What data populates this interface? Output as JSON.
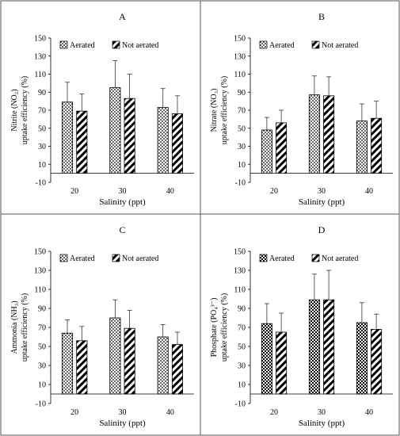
{
  "chart_data": [
    {
      "type": "bar",
      "title": "A",
      "ylabel_line1": "Nitrite (NO₂)",
      "ylabel_line2": "uptake efficiency (%)",
      "xlabel": "Salinity (ppt)",
      "categories": [
        "20",
        "30",
        "40"
      ],
      "ylim": [
        -10,
        150
      ],
      "yticks": [
        "-10",
        "10",
        "30",
        "50",
        "70",
        "90",
        "110",
        "130",
        "150"
      ],
      "legend": "top-center",
      "series": [
        {
          "name": "Aerated",
          "pattern": "dots",
          "values": [
            79,
            95,
            73
          ],
          "errors": [
            22,
            30,
            21
          ]
        },
        {
          "name": "Not aerated",
          "pattern": "stripes",
          "values": [
            69,
            83,
            66
          ],
          "errors": [
            19,
            27,
            20
          ]
        }
      ]
    },
    {
      "type": "bar",
      "title": "B",
      "ylabel_line1": "Nitrate (NO₃)",
      "ylabel_line2": "uptake efficiency (%)",
      "xlabel": "Salinity (ppt)",
      "categories": [
        "20",
        "30",
        "40"
      ],
      "ylim": [
        -10,
        150
      ],
      "yticks": [
        "-10",
        "10",
        "30",
        "50",
        "70",
        "90",
        "110",
        "130",
        "150"
      ],
      "legend": "top-center",
      "series": [
        {
          "name": "Aerated",
          "pattern": "dots",
          "values": [
            48,
            87,
            58
          ],
          "errors": [
            14,
            21,
            19
          ]
        },
        {
          "name": "Not aerated",
          "pattern": "stripes",
          "values": [
            56,
            86,
            61
          ],
          "errors": [
            14,
            21,
            19
          ]
        }
      ]
    },
    {
      "type": "bar",
      "title": "C",
      "ylabel_line1": "Ammonia (NH₃)",
      "ylabel_line2": "uptake efficiency (%)",
      "xlabel": "Salinity (ppt)",
      "categories": [
        "20",
        "30",
        "40"
      ],
      "ylim": [
        -10,
        150
      ],
      "yticks": [
        "-10",
        "10",
        "30",
        "50",
        "70",
        "90",
        "110",
        "130",
        "150"
      ],
      "legend": "top-center",
      "series": [
        {
          "name": "Aerated",
          "pattern": "dots",
          "values": [
            64,
            80,
            60
          ],
          "errors": [
            14,
            19,
            13
          ]
        },
        {
          "name": "Not aerated",
          "pattern": "stripes",
          "values": [
            56,
            69,
            52
          ],
          "errors": [
            15,
            19,
            13
          ]
        }
      ]
    },
    {
      "type": "bar",
      "title": "D",
      "ylabel_line1": "Phosphate (PO₄³⁻)",
      "ylabel_line2": "uptake efficiency (%)",
      "xlabel": "Salinity (ppt)",
      "categories": [
        "20",
        "30",
        "40"
      ],
      "ylim": [
        -10,
        150
      ],
      "yticks": [
        "-10",
        "10",
        "30",
        "50",
        "70",
        "90",
        "110",
        "130",
        "150"
      ],
      "legend": "top-center",
      "series": [
        {
          "name": "Aerated",
          "pattern": "checker",
          "values": [
            74,
            99,
            75
          ],
          "errors": [
            21,
            27,
            21
          ]
        },
        {
          "name": "Not aerated",
          "pattern": "stripes",
          "values": [
            65,
            99,
            68
          ],
          "errors": [
            20,
            31,
            16
          ]
        }
      ]
    }
  ]
}
